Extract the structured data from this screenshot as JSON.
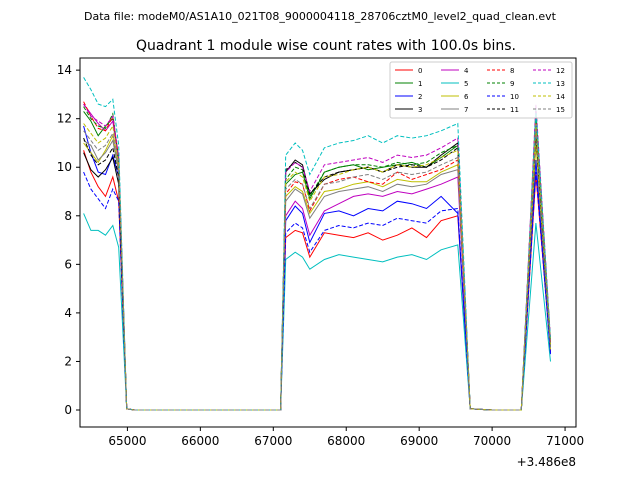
{
  "chart_data": {
    "type": "line",
    "suptitle": "Data file: modeM0/AS1A10_021T08_9000004118_28706cztM0_level2_quad_clean.evt",
    "title": "Quadrant 1 module wise count rates with 100.0s bins.",
    "xlabel": "",
    "ylabel": "",
    "x_offset_label": "+3.486e8",
    "xlim": [
      64350,
      71150
    ],
    "ylim": [
      -0.7,
      14.5
    ],
    "x_ticks": [
      65000,
      66000,
      67000,
      68000,
      69000,
      70000,
      71000
    ],
    "y_ticks": [
      0,
      2,
      4,
      6,
      8,
      10,
      12,
      14
    ],
    "grid": false,
    "legend_position": "top-right",
    "legend_columns": 4,
    "series": [
      {
        "name": "0",
        "color": "#ff0000",
        "dash": "solid",
        "values": [
          10.7,
          9.8,
          9.2,
          8.8,
          9.6,
          8.6,
          0.05,
          0,
          0,
          7.1,
          7.4,
          7.3,
          6.3,
          7.3,
          7.2,
          7.1,
          7.3,
          7.0,
          7.2,
          7.5,
          7.1,
          7.8,
          8.0,
          0.05,
          0,
          0,
          9.7,
          2.4
        ]
      },
      {
        "name": "1",
        "color": "#008000",
        "dash": "solid",
        "values": [
          12.3,
          11.9,
          11.3,
          11.7,
          12.0,
          10.1,
          0.05,
          0,
          0,
          9.3,
          9.7,
          9.8,
          8.7,
          9.8,
          10.0,
          10.1,
          9.9,
          10.0,
          10.1,
          10.2,
          10.0,
          10.4,
          10.9,
          0.05,
          0,
          0,
          12.3,
          2.8
        ]
      },
      {
        "name": "2",
        "color": "#0000ff",
        "dash": "solid",
        "values": [
          11.7,
          10.6,
          9.8,
          9.7,
          10.5,
          9.6,
          0.05,
          0,
          0,
          7.8,
          8.4,
          8.1,
          6.9,
          8.1,
          8.2,
          8.0,
          8.3,
          8.2,
          8.6,
          8.5,
          8.3,
          8.8,
          8.1,
          0.05,
          0,
          0,
          10.3,
          2.3
        ]
      },
      {
        "name": "3",
        "color": "#000000",
        "dash": "solid",
        "values": [
          10.6,
          9.9,
          9.6,
          9.9,
          10.4,
          9.3,
          0.05,
          0,
          0,
          9.8,
          10.3,
          10.1,
          8.9,
          9.5,
          9.8,
          9.9,
          10.0,
          9.8,
          10.1,
          10.0,
          10.0,
          10.5,
          11.0,
          0.05,
          0,
          0,
          11.3,
          2.6
        ]
      },
      {
        "name": "4",
        "color": "#bf00bf",
        "dash": "solid",
        "values": [
          12.6,
          12.2,
          11.8,
          11.5,
          11.9,
          10.2,
          0.05,
          0,
          0,
          8.0,
          8.6,
          8.3,
          7.2,
          8.2,
          8.5,
          8.8,
          8.9,
          8.8,
          9.0,
          8.9,
          9.1,
          9.3,
          9.6,
          0.05,
          0,
          0,
          12.0,
          2.8
        ]
      },
      {
        "name": "5",
        "color": "#00bfbf",
        "dash": "solid",
        "values": [
          8.1,
          7.4,
          7.4,
          7.2,
          7.6,
          6.7,
          0.05,
          0,
          0,
          6.2,
          6.5,
          6.3,
          5.8,
          6.2,
          6.4,
          6.3,
          6.2,
          6.1,
          6.3,
          6.4,
          6.2,
          6.6,
          6.8,
          0.05,
          0,
          0,
          7.7,
          2.0
        ]
      },
      {
        "name": "6",
        "color": "#bfbf00",
        "dash": "solid",
        "values": [
          11.0,
          10.6,
          10.2,
          10.7,
          11.3,
          9.9,
          0.05,
          0,
          0,
          8.8,
          9.2,
          9.0,
          8.1,
          9.0,
          9.1,
          9.3,
          9.4,
          9.2,
          9.5,
          9.4,
          9.4,
          9.8,
          10.1,
          0.05,
          0,
          0,
          11.0,
          2.5
        ]
      },
      {
        "name": "7",
        "color": "#808080",
        "dash": "solid",
        "values": [
          11.1,
          10.9,
          10.3,
          10.6,
          11.1,
          9.8,
          0.05,
          0,
          0,
          8.6,
          9.1,
          8.9,
          7.9,
          8.8,
          9.0,
          9.1,
          9.2,
          9.0,
          9.3,
          9.2,
          9.3,
          9.7,
          9.9,
          0.05,
          0,
          0,
          11.6,
          2.6
        ]
      },
      {
        "name": "8",
        "color": "#ff0000",
        "dash": "dashed",
        "values": [
          12.7,
          12.1,
          11.6,
          11.5,
          12.1,
          10.4,
          0.05,
          0,
          0,
          8.9,
          9.4,
          9.3,
          8.2,
          9.3,
          9.5,
          9.6,
          9.4,
          9.3,
          9.8,
          9.5,
          9.7,
          9.9,
          10.3,
          0.05,
          0,
          0,
          12.4,
          2.8
        ]
      },
      {
        "name": "9",
        "color": "#008000",
        "dash": "dashed",
        "values": [
          12.5,
          12.0,
          11.7,
          11.6,
          12.2,
          10.3,
          0.05,
          0,
          0,
          9.5,
          10.0,
          9.9,
          8.8,
          9.8,
          10.0,
          10.1,
          10.1,
          10.0,
          10.2,
          10.1,
          10.2,
          10.6,
          10.9,
          0.05,
          0,
          0,
          12.2,
          2.8
        ]
      },
      {
        "name": "10",
        "color": "#0000ff",
        "dash": "dashed",
        "values": [
          9.8,
          9.1,
          8.7,
          8.3,
          9.1,
          8.6,
          0.05,
          0,
          0,
          7.3,
          7.7,
          7.5,
          6.5,
          7.4,
          7.6,
          7.5,
          7.7,
          7.6,
          7.9,
          7.8,
          7.7,
          8.2,
          8.3,
          0.05,
          0,
          0,
          9.8,
          2.3
        ]
      },
      {
        "name": "11",
        "color": "#000000",
        "dash": "dashed",
        "values": [
          11.2,
          10.5,
          10.1,
          10.3,
          10.8,
          9.6,
          0.05,
          0,
          0,
          9.9,
          10.2,
          10.0,
          8.9,
          9.6,
          9.8,
          9.9,
          10.0,
          9.8,
          10.0,
          10.1,
          10.0,
          10.3,
          10.8,
          0.05,
          0,
          0,
          11.4,
          2.6
        ]
      },
      {
        "name": "12",
        "color": "#bf00bf",
        "dash": "dashed",
        "values": [
          12.6,
          12.1,
          11.9,
          11.7,
          12.1,
          10.4,
          0.05,
          0,
          0,
          9.8,
          10.2,
          10.0,
          9.0,
          10.1,
          10.2,
          10.3,
          10.4,
          10.2,
          10.5,
          10.4,
          10.5,
          10.8,
          11.2,
          0.05,
          0,
          0,
          12.6,
          2.9
        ]
      },
      {
        "name": "13",
        "color": "#00bfbf",
        "dash": "dashed",
        "values": [
          13.7,
          13.2,
          12.6,
          12.5,
          12.8,
          10.9,
          0.05,
          0,
          0,
          10.5,
          11.0,
          10.7,
          9.7,
          10.8,
          11.0,
          11.1,
          11.3,
          11.0,
          11.3,
          11.2,
          11.3,
          11.5,
          11.8,
          0.05,
          0,
          0,
          12.4,
          2.9
        ]
      },
      {
        "name": "14",
        "color": "#bfbf00",
        "dash": "dashed",
        "values": [
          11.8,
          11.4,
          11.0,
          11.2,
          11.7,
          10.1,
          0.05,
          0,
          0,
          9.4,
          9.8,
          9.6,
          8.6,
          9.6,
          9.7,
          9.9,
          10.0,
          9.8,
          10.1,
          10.0,
          10.1,
          10.4,
          10.7,
          0.05,
          0,
          0,
          11.8,
          2.7
        ]
      },
      {
        "name": "15",
        "color": "#808080",
        "dash": "dashed",
        "values": [
          11.5,
          11.1,
          10.7,
          10.9,
          11.4,
          9.9,
          0.05,
          0,
          0,
          9.1,
          9.5,
          9.3,
          8.3,
          9.3,
          9.4,
          9.6,
          9.7,
          9.5,
          9.8,
          9.7,
          9.8,
          10.1,
          10.4,
          0.05,
          0,
          0,
          11.6,
          2.6
        ]
      }
    ]
  }
}
